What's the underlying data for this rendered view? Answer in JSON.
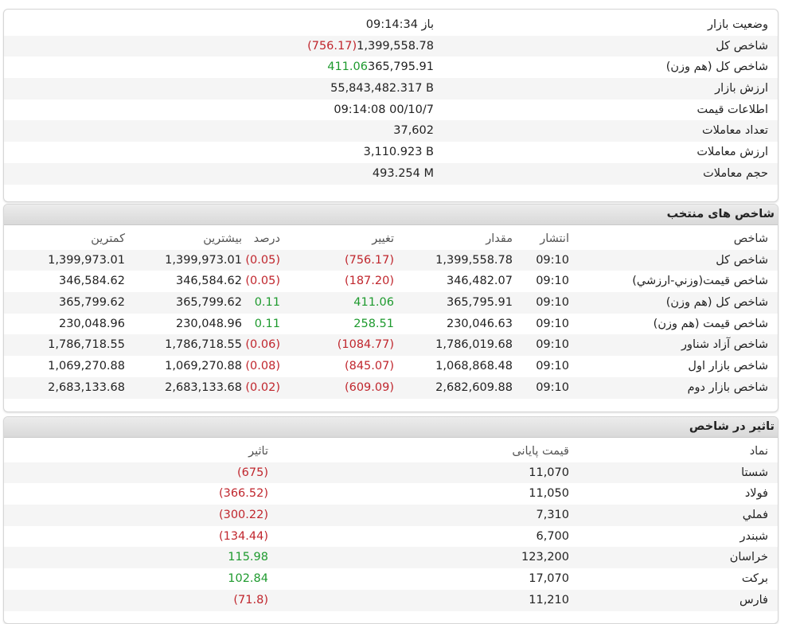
{
  "summary": {
    "rows": [
      {
        "label": "وضعیت بازار",
        "parts": [
          {
            "text": "باز 09:14:34",
            "color": ""
          }
        ]
      },
      {
        "label": "شاخص کل",
        "parts": [
          {
            "text": "1,399,558.78",
            "color": ""
          },
          {
            "text": "(756.17)",
            "color": "red"
          }
        ]
      },
      {
        "label": "شاخص کل (هم وزن)",
        "parts": [
          {
            "text": "365,795.91",
            "color": ""
          },
          {
            "text": "411.06",
            "color": "green"
          }
        ]
      },
      {
        "label": "ارزش بازار",
        "parts": [
          {
            "text": "55,843,482.317 B",
            "color": ""
          }
        ]
      },
      {
        "label": "اطلاعات قیمت",
        "parts": [
          {
            "text": "09:14:08 00/10/7",
            "color": ""
          }
        ]
      },
      {
        "label": "تعداد معاملات",
        "parts": [
          {
            "text": "37,602",
            "color": ""
          }
        ]
      },
      {
        "label": "ارزش معاملات",
        "parts": [
          {
            "text": "3,110.923 B",
            "color": ""
          }
        ]
      },
      {
        "label": "حجم معاملات",
        "parts": [
          {
            "text": "493.254 M",
            "color": ""
          }
        ]
      }
    ]
  },
  "indices": {
    "title": "شاخص های منتخب",
    "columns": [
      "شاخص",
      "انتشار",
      "مقدار",
      "تغییر",
      "درصد",
      "بیشترین",
      "کمترین"
    ],
    "rows": [
      {
        "name": "شاخص کل",
        "time": "09:10",
        "value": "1,399,558.78",
        "change": "(756.17)",
        "percent": "(0.05)",
        "high": "1,399,973.01",
        "low": "1,399,973.01",
        "dir": "red"
      },
      {
        "name": "شاخص قیمت(وزني-ارزشي)",
        "time": "09:10",
        "value": "346,482.07",
        "change": "(187.20)",
        "percent": "(0.05)",
        "high": "346,584.62",
        "low": "346,584.62",
        "dir": "red"
      },
      {
        "name": "شاخص کل (هم وزن)",
        "time": "09:10",
        "value": "365,795.91",
        "change": "411.06",
        "percent": "0.11",
        "high": "365,799.62",
        "low": "365,799.62",
        "dir": "green"
      },
      {
        "name": "شاخص قیمت (هم وزن)",
        "time": "09:10",
        "value": "230,046.63",
        "change": "258.51",
        "percent": "0.11",
        "high": "230,048.96",
        "low": "230,048.96",
        "dir": "green"
      },
      {
        "name": "شاخص آزاد شناور",
        "time": "09:10",
        "value": "1,786,019.68",
        "change": "(1084.77)",
        "percent": "(0.06)",
        "high": "1,786,718.55",
        "low": "1,786,718.55",
        "dir": "red"
      },
      {
        "name": "شاخص بازار اول",
        "time": "09:10",
        "value": "1,068,868.48",
        "change": "(845.07)",
        "percent": "(0.08)",
        "high": "1,069,270.88",
        "low": "1,069,270.88",
        "dir": "red"
      },
      {
        "name": "شاخص بازار دوم",
        "time": "09:10",
        "value": "2,682,609.88",
        "change": "(609.09)",
        "percent": "(0.02)",
        "high": "2,683,133.68",
        "low": "2,683,133.68",
        "dir": "red"
      }
    ]
  },
  "impact": {
    "title": "تاثیر در شاخص",
    "columns": [
      "نماد",
      "قیمت پایانی",
      "تاثیر"
    ],
    "rows": [
      {
        "symbol": "شستا",
        "price": "11,070",
        "effect": "(675)",
        "dir": "red"
      },
      {
        "symbol": "فولاد",
        "price": "11,050",
        "effect": "(366.52)",
        "dir": "red"
      },
      {
        "symbol": "فملي",
        "price": "7,310",
        "effect": "(300.22)",
        "dir": "red"
      },
      {
        "symbol": "شبندر",
        "price": "6,700",
        "effect": "(134.44)",
        "dir": "red"
      },
      {
        "symbol": "خراسان",
        "price": "123,200",
        "effect": "115.98",
        "dir": "green"
      },
      {
        "symbol": "برکت",
        "price": "17,070",
        "effect": "102.84",
        "dir": "green"
      },
      {
        "symbol": "فارس",
        "price": "11,210",
        "effect": "(71.8)",
        "dir": "red"
      }
    ]
  }
}
